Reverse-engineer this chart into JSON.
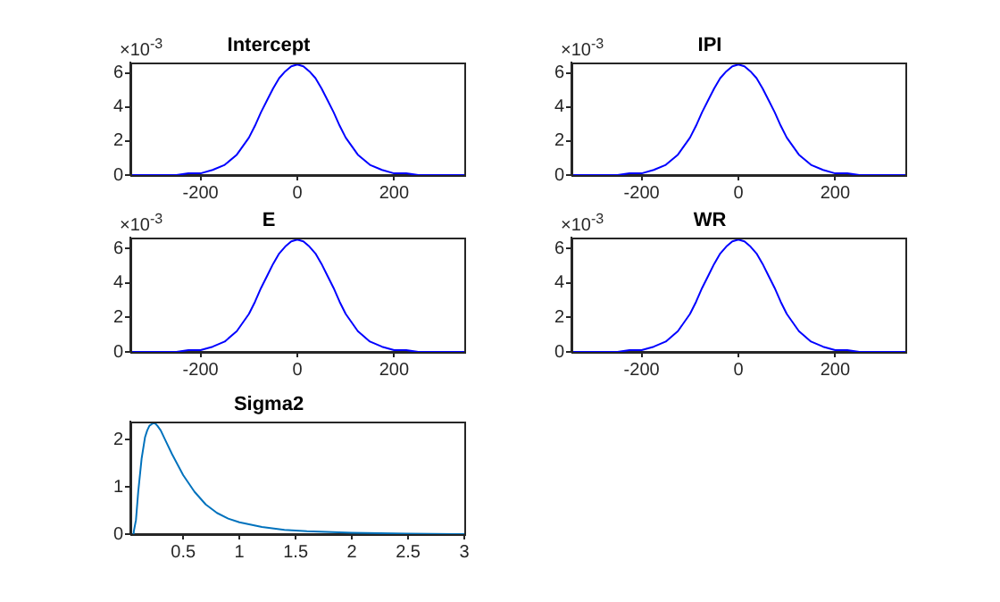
{
  "chart_data": [
    {
      "type": "line",
      "title": "Intercept",
      "annotations": [
        "×10$^{-3}$"
      ],
      "x": [
        -345,
        -300,
        -250,
        -225,
        -200,
        -175,
        -150,
        -125,
        -100,
        -87.5,
        -75,
        -62.5,
        -50,
        -37.5,
        -25,
        -12.5,
        0,
        12.5,
        25,
        37.5,
        50,
        62.5,
        75,
        87.5,
        100,
        125,
        150,
        175,
        200,
        225,
        250,
        300,
        345
      ],
      "series": [
        {
          "color": "#0000ff",
          "values": [
            0,
            0,
            0,
            0.1,
            0.1,
            0.3,
            0.6,
            1.2,
            2.2,
            2.9,
            3.7,
            4.4,
            5.1,
            5.7,
            6.1,
            6.4,
            6.5,
            6.4,
            6.1,
            5.7,
            5.1,
            4.4,
            3.7,
            2.9,
            2.2,
            1.2,
            0.6,
            0.3,
            0.1,
            0.1,
            0,
            0,
            0
          ]
        }
      ],
      "xlim": [
        -345,
        345
      ],
      "xticks": [
        -200,
        0,
        200
      ],
      "ylim": [
        0,
        6.6
      ],
      "yticks": [
        0,
        2,
        4,
        6
      ],
      "marker": "none",
      "grid": false
    },
    {
      "type": "line",
      "title": "IPI",
      "annotations": [
        "×10$^{-3}$"
      ],
      "x": [
        -345,
        -300,
        -250,
        -225,
        -200,
        -175,
        -150,
        -125,
        -100,
        -87.5,
        -75,
        -62.5,
        -50,
        -37.5,
        -25,
        -12.5,
        0,
        12.5,
        25,
        37.5,
        50,
        62.5,
        75,
        87.5,
        100,
        125,
        150,
        175,
        200,
        225,
        250,
        300,
        345
      ],
      "series": [
        {
          "color": "#0000ff",
          "values": [
            0,
            0,
            0,
            0.1,
            0.1,
            0.3,
            0.6,
            1.2,
            2.2,
            2.9,
            3.7,
            4.4,
            5.1,
            5.7,
            6.1,
            6.4,
            6.5,
            6.4,
            6.1,
            5.7,
            5.1,
            4.4,
            3.7,
            2.9,
            2.2,
            1.2,
            0.6,
            0.3,
            0.1,
            0.1,
            0,
            0,
            0
          ]
        }
      ],
      "xlim": [
        -345,
        345
      ],
      "xticks": [
        -200,
        0,
        200
      ],
      "ylim": [
        0,
        6.6
      ],
      "yticks": [
        0,
        2,
        4,
        6
      ],
      "marker": "none",
      "grid": false
    },
    {
      "type": "line",
      "title": "E",
      "annotations": [
        "×10$^{-3}$"
      ],
      "x": [
        -345,
        -300,
        -250,
        -225,
        -200,
        -175,
        -150,
        -125,
        -100,
        -87.5,
        -75,
        -62.5,
        -50,
        -37.5,
        -25,
        -12.5,
        0,
        12.5,
        25,
        37.5,
        50,
        62.5,
        75,
        87.5,
        100,
        125,
        150,
        175,
        200,
        225,
        250,
        300,
        345
      ],
      "series": [
        {
          "color": "#0000ff",
          "values": [
            0,
            0,
            0,
            0.1,
            0.1,
            0.3,
            0.6,
            1.2,
            2.2,
            2.9,
            3.7,
            4.4,
            5.1,
            5.7,
            6.1,
            6.4,
            6.5,
            6.4,
            6.1,
            5.7,
            5.1,
            4.4,
            3.7,
            2.9,
            2.2,
            1.2,
            0.6,
            0.3,
            0.1,
            0.1,
            0,
            0,
            0
          ]
        }
      ],
      "xlim": [
        -345,
        345
      ],
      "xticks": [
        -200,
        0,
        200
      ],
      "ylim": [
        0,
        6.6
      ],
      "yticks": [
        0,
        2,
        4,
        6
      ],
      "marker": "none",
      "grid": false
    },
    {
      "type": "line",
      "title": "WR",
      "annotations": [
        "×10$^{-3}$"
      ],
      "x": [
        -345,
        -300,
        -250,
        -225,
        -200,
        -175,
        -150,
        -125,
        -100,
        -87.5,
        -75,
        -62.5,
        -50,
        -37.5,
        -25,
        -12.5,
        0,
        12.5,
        25,
        37.5,
        50,
        62.5,
        75,
        87.5,
        100,
        125,
        150,
        175,
        200,
        225,
        250,
        300,
        345
      ],
      "series": [
        {
          "color": "#0000ff",
          "values": [
            0,
            0,
            0,
            0.1,
            0.1,
            0.3,
            0.6,
            1.2,
            2.2,
            2.9,
            3.7,
            4.4,
            5.1,
            5.7,
            6.1,
            6.4,
            6.5,
            6.4,
            6.1,
            5.7,
            5.1,
            4.4,
            3.7,
            2.9,
            2.2,
            1.2,
            0.6,
            0.3,
            0.1,
            0.1,
            0,
            0,
            0
          ]
        }
      ],
      "xlim": [
        -345,
        345
      ],
      "xticks": [
        -200,
        0,
        200
      ],
      "ylim": [
        0,
        6.6
      ],
      "yticks": [
        0,
        2,
        4,
        6
      ],
      "marker": "none",
      "grid": false
    },
    {
      "type": "line",
      "title": "Sigma2",
      "x": [
        0.05,
        0.06,
        0.08,
        0.1,
        0.13,
        0.16,
        0.18,
        0.2,
        0.23,
        0.25,
        0.27,
        0.3,
        0.35,
        0.4,
        0.5,
        0.6,
        0.7,
        0.8,
        0.9,
        1,
        1.2,
        1.4,
        1.6,
        2,
        2.5,
        3
      ],
      "series": [
        {
          "color": "#0072bd",
          "values": [
            0,
            0.05,
            0.3,
            0.9,
            1.6,
            2.05,
            2.2,
            2.3,
            2.35,
            2.35,
            2.3,
            2.2,
            1.95,
            1.7,
            1.25,
            0.9,
            0.63,
            0.45,
            0.33,
            0.25,
            0.15,
            0.09,
            0.06,
            0.03,
            0.01,
            0
          ]
        }
      ],
      "xlim": [
        0.03,
        3
      ],
      "xticks": [
        0.5,
        1,
        1.5,
        2,
        2.5,
        3
      ],
      "ylim": [
        0,
        2.38
      ],
      "yticks": [
        0,
        1,
        2
      ],
      "marker": "none",
      "grid": false
    }
  ]
}
